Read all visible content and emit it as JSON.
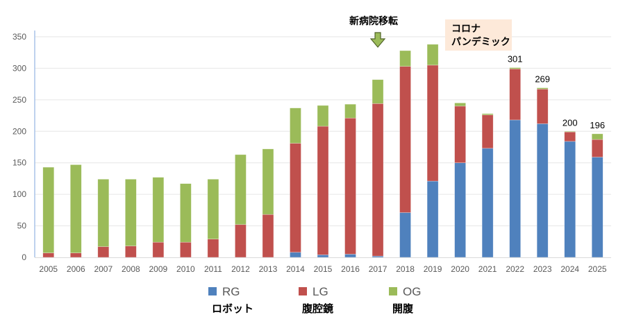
{
  "chart_data": {
    "type": "bar",
    "stacked": true,
    "categories": [
      "2005",
      "2006",
      "2007",
      "2008",
      "2009",
      "2010",
      "2011",
      "2012",
      "2013",
      "2014",
      "2015",
      "2016",
      "2017",
      "2018",
      "2019",
      "2020",
      "2021",
      "2022",
      "2023",
      "2024",
      "2025"
    ],
    "series": [
      {
        "name": "RG",
        "subtitle": "ロボット",
        "color": "#4F81BD",
        "values": [
          0,
          0,
          0,
          0,
          0,
          0,
          0,
          0,
          0,
          8,
          4,
          5,
          2,
          71,
          121,
          150,
          173,
          218,
          212,
          184,
          159
        ]
      },
      {
        "name": "LG",
        "subtitle": "腹腔鏡",
        "color": "#C0504D",
        "values": [
          7,
          7,
          17,
          18,
          24,
          24,
          29,
          52,
          68,
          173,
          204,
          216,
          242,
          232,
          184,
          90,
          53,
          81,
          55,
          15,
          28
        ]
      },
      {
        "name": "OG",
        "subtitle": "開腹",
        "color": "#9BBB59",
        "values": [
          136,
          140,
          107,
          106,
          103,
          93,
          95,
          111,
          104,
          56,
          33,
          22,
          38,
          25,
          33,
          5,
          2,
          2,
          2,
          1,
          9
        ]
      }
    ],
    "data_labels": [
      {
        "category": "2022",
        "text": "301"
      },
      {
        "category": "2023",
        "text": "269"
      },
      {
        "category": "2024",
        "text": "200"
      },
      {
        "category": "2025",
        "text": "196"
      }
    ],
    "ylim": [
      0,
      350
    ],
    "yticks": [
      0,
      50,
      100,
      150,
      200,
      250,
      300,
      350
    ],
    "grid": true,
    "legend_placement": "bottom",
    "annotations": [
      {
        "category": "2017",
        "text": "新病院移転",
        "arrow": true,
        "arrow_color": "#9BBB59"
      },
      {
        "category": "2019-2020",
        "lines": [
          "コロナ",
          "パンデミック"
        ],
        "box_color": "#FDE9D9"
      }
    ]
  }
}
